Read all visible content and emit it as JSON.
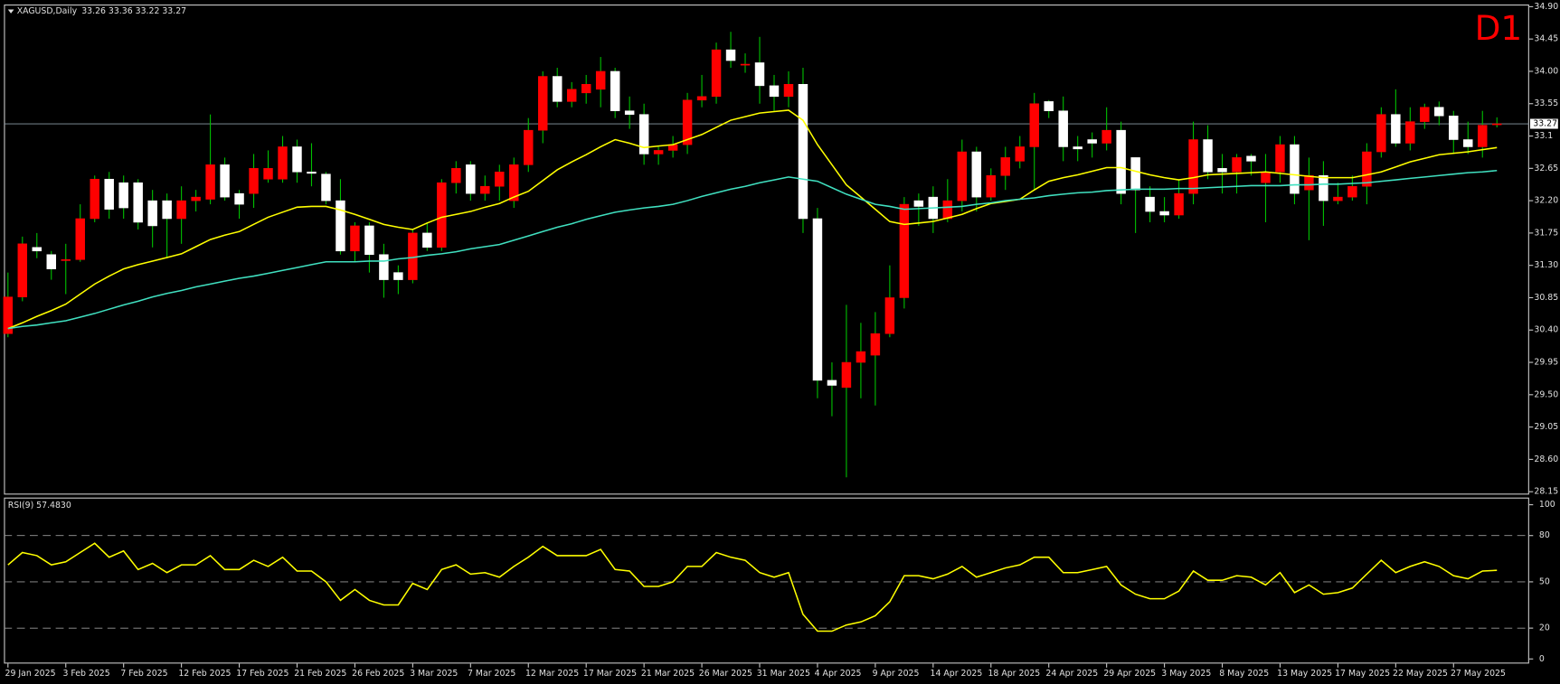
{
  "chart_data": [
    {
      "type": "candlestick",
      "title": "XAGUSD,Daily",
      "subtitle": "33.26 33.36 33.22 33.27",
      "annotation": "D1",
      "categories": [
        "29 Jan 2025",
        null,
        null,
        null,
        "3 Feb 2025",
        null,
        null,
        null,
        "7 Feb 2025",
        null,
        null,
        null,
        "12 Feb 2025",
        null,
        null,
        null,
        "17 Feb 2025",
        null,
        null,
        null,
        "21 Feb 2025",
        null,
        null,
        null,
        "26 Feb 2025",
        null,
        null,
        null,
        "3 Mar 2025",
        null,
        null,
        null,
        "7 Mar 2025",
        null,
        null,
        null,
        "12 Mar 2025",
        null,
        null,
        null,
        "17 Mar 2025",
        null,
        null,
        null,
        "21 Mar 2025",
        null,
        null,
        null,
        "26 Mar 2025",
        null,
        null,
        null,
        "31 Mar 2025",
        null,
        null,
        null,
        "4 Apr 2025",
        null,
        null,
        null,
        "9 Apr 2025",
        null,
        null,
        null,
        "14 Apr 2025",
        null,
        null,
        null,
        "18 Apr 2025",
        null,
        null,
        null,
        "24 Apr 2025",
        null,
        null,
        null,
        "29 Apr 2025",
        null,
        null,
        null,
        "3 May 2025",
        null,
        null,
        null,
        "8 May 2025",
        null,
        null,
        null,
        "13 May 2025",
        null,
        null,
        null,
        "17 May 2025",
        null,
        null,
        null,
        "22 May 2025",
        null,
        null,
        null,
        "27 May 2025",
        null,
        null,
        null
      ],
      "open": [
        30.35,
        30.86,
        31.55,
        31.45,
        31.38,
        31.38,
        31.95,
        32.5,
        32.45,
        32.45,
        32.2,
        32.2,
        31.95,
        32.2,
        32.22,
        32.7,
        32.3,
        32.3,
        32.5,
        32.5,
        32.95,
        32.6,
        32.57,
        32.2,
        31.5,
        31.85,
        31.45,
        31.2,
        31.1,
        31.75,
        31.55,
        32.45,
        32.7,
        32.3,
        32.4,
        32.2,
        32.7,
        33.18,
        33.93,
        33.58,
        33.7,
        33.75,
        34.0,
        33.45,
        33.4,
        32.85,
        32.9,
        32.98,
        33.6,
        33.65,
        34.3,
        34.1,
        34.12,
        33.8,
        33.65,
        33.82,
        31.95,
        29.7,
        29.6,
        29.95,
        30.05,
        30.35,
        30.85,
        32.2,
        32.25,
        31.95,
        32.2,
        32.88,
        32.25,
        32.55,
        32.75,
        32.95,
        33.58,
        33.45,
        32.95,
        33.05,
        33.0,
        33.18,
        32.8,
        32.25,
        32.05,
        32.0,
        32.3,
        33.05,
        32.65,
        32.6,
        32.82,
        32.45,
        32.6,
        32.98,
        32.35,
        32.55,
        32.2,
        32.25,
        32.4,
        32.88,
        33.4,
        33.0,
        33.3,
        33.5,
        33.38,
        33.05,
        32.95,
        33.26
      ],
      "high": [
        31.2,
        31.7,
        31.75,
        31.5,
        31.6,
        32.15,
        32.55,
        32.6,
        32.55,
        32.5,
        32.35,
        32.3,
        32.4,
        32.35,
        33.4,
        32.8,
        32.35,
        32.85,
        32.9,
        33.1,
        33.05,
        33.0,
        32.6,
        32.5,
        31.9,
        31.9,
        31.6,
        31.3,
        31.8,
        31.9,
        32.5,
        32.75,
        32.75,
        32.55,
        32.7,
        32.8,
        33.35,
        34.0,
        34.05,
        33.85,
        33.95,
        34.2,
        34.05,
        33.65,
        33.55,
        32.95,
        33.1,
        33.7,
        33.95,
        34.4,
        34.55,
        34.25,
        34.48,
        33.95,
        34.0,
        34.05,
        32.1,
        29.95,
        30.75,
        30.5,
        30.65,
        31.3,
        32.25,
        32.3,
        32.4,
        32.5,
        33.05,
        32.95,
        32.65,
        32.95,
        33.1,
        33.7,
        33.6,
        33.65,
        33.1,
        33.15,
        33.5,
        33.3,
        32.8,
        32.4,
        32.25,
        32.5,
        33.3,
        33.25,
        32.85,
        32.85,
        32.85,
        32.85,
        33.1,
        33.1,
        32.8,
        32.75,
        32.45,
        32.55,
        33.0,
        33.5,
        33.75,
        33.5,
        33.55,
        33.58,
        33.45,
        33.3,
        33.45,
        33.36
      ],
      "low": [
        30.3,
        30.8,
        31.4,
        31.1,
        30.9,
        31.35,
        31.9,
        31.95,
        31.95,
        31.8,
        31.55,
        31.4,
        31.6,
        32.05,
        32.15,
        32.2,
        31.95,
        32.1,
        32.45,
        32.45,
        32.45,
        32.4,
        32.15,
        31.45,
        31.35,
        31.2,
        30.85,
        30.9,
        31.05,
        31.5,
        31.5,
        32.3,
        32.2,
        32.2,
        32.2,
        32.1,
        32.6,
        33.0,
        33.5,
        33.5,
        33.55,
        33.5,
        33.35,
        33.2,
        32.7,
        32.7,
        32.8,
        32.85,
        33.5,
        33.55,
        34.05,
        33.98,
        33.55,
        33.45,
        33.5,
        31.75,
        29.45,
        29.2,
        28.35,
        29.45,
        29.35,
        30.3,
        30.7,
        31.85,
        31.75,
        31.9,
        32.05,
        32.05,
        32.2,
        32.35,
        32.65,
        32.35,
        33.35,
        32.75,
        32.75,
        32.8,
        32.9,
        32.15,
        31.75,
        31.9,
        31.9,
        31.95,
        32.15,
        32.5,
        32.3,
        32.3,
        32.55,
        31.9,
        32.45,
        32.15,
        31.65,
        31.85,
        32.15,
        32.2,
        32.15,
        32.8,
        32.95,
        32.9,
        33.2,
        33.25,
        32.85,
        32.85,
        32.8,
        33.22
      ],
      "close": [
        30.86,
        31.6,
        31.5,
        31.25,
        31.38,
        31.95,
        32.5,
        32.08,
        32.1,
        31.9,
        31.85,
        31.95,
        32.2,
        32.25,
        32.7,
        32.25,
        32.15,
        32.65,
        32.65,
        32.95,
        32.6,
        32.58,
        32.2,
        31.5,
        31.85,
        31.45,
        31.1,
        31.1,
        31.75,
        31.55,
        32.45,
        32.65,
        32.3,
        32.4,
        32.6,
        32.7,
        33.18,
        33.93,
        33.58,
        33.75,
        33.82,
        34.0,
        33.45,
        33.4,
        32.85,
        32.9,
        32.98,
        33.6,
        33.65,
        34.3,
        34.15,
        34.1,
        33.8,
        33.65,
        33.82,
        31.95,
        29.7,
        29.63,
        29.95,
        30.1,
        30.35,
        30.85,
        32.15,
        32.12,
        31.95,
        32.2,
        32.88,
        32.25,
        32.55,
        32.8,
        32.95,
        33.55,
        33.45,
        32.95,
        32.92,
        33.0,
        33.18,
        32.3,
        32.35,
        32.05,
        32.0,
        32.3,
        33.05,
        32.6,
        32.6,
        32.8,
        32.75,
        32.6,
        32.98,
        32.3,
        32.55,
        32.2,
        32.25,
        32.4,
        32.88,
        33.4,
        33.0,
        33.3,
        33.5,
        33.38,
        33.05,
        32.95,
        33.25,
        33.27
      ],
      "up_color": "#ff0000",
      "down_color": "#ffffff",
      "wick_color": "#00c000",
      "lines": [
        {
          "color": "#ffff00",
          "values": [
            30.42,
            30.5,
            30.59,
            30.67,
            30.76,
            30.9,
            31.04,
            31.15,
            31.25,
            31.31,
            31.36,
            31.41,
            31.46,
            31.56,
            31.66,
            31.72,
            31.77,
            31.87,
            31.97,
            32.04,
            32.11,
            32.12,
            32.12,
            32.07,
            32.01,
            31.94,
            31.87,
            31.83,
            31.8,
            31.89,
            31.97,
            32.01,
            32.05,
            32.11,
            32.16,
            32.25,
            32.33,
            32.48,
            32.63,
            32.74,
            32.84,
            32.95,
            33.05,
            33.0,
            32.94,
            32.96,
            32.98,
            33.05,
            33.12,
            33.22,
            33.32,
            33.37,
            33.42,
            33.44,
            33.46,
            33.32,
            32.98,
            32.7,
            32.42,
            32.25,
            32.08,
            31.91,
            31.87,
            31.89,
            31.91,
            31.96,
            32.01,
            32.09,
            32.16,
            32.19,
            32.22,
            32.35,
            32.47,
            32.52,
            32.56,
            32.61,
            32.66,
            32.66,
            32.61,
            32.56,
            32.52,
            32.49,
            32.52,
            32.56,
            32.57,
            32.58,
            32.59,
            32.6,
            32.58,
            32.56,
            32.54,
            32.52,
            32.52,
            32.52,
            32.56,
            32.6,
            32.67,
            32.74,
            32.79,
            32.84,
            32.86,
            32.88,
            32.91,
            32.94
          ]
        },
        {
          "color": "#40e0c0",
          "values": [
            30.42,
            30.45,
            30.47,
            30.5,
            30.53,
            30.58,
            30.63,
            30.69,
            30.75,
            30.8,
            30.86,
            30.91,
            30.95,
            31.0,
            31.04,
            31.08,
            31.12,
            31.15,
            31.19,
            31.23,
            31.27,
            31.31,
            31.35,
            31.35,
            31.35,
            31.36,
            31.36,
            31.39,
            31.41,
            31.44,
            31.46,
            31.49,
            31.53,
            31.56,
            31.59,
            31.65,
            31.71,
            31.77,
            31.83,
            31.88,
            31.94,
            31.99,
            32.04,
            32.07,
            32.1,
            32.12,
            32.15,
            32.2,
            32.26,
            32.31,
            32.36,
            32.4,
            32.45,
            32.49,
            32.53,
            32.5,
            32.47,
            32.38,
            32.29,
            32.22,
            32.15,
            32.12,
            32.08,
            32.09,
            32.1,
            32.11,
            32.12,
            32.15,
            32.17,
            32.2,
            32.22,
            32.24,
            32.27,
            32.29,
            32.31,
            32.32,
            32.34,
            32.35,
            32.36,
            32.36,
            32.36,
            32.37,
            32.37,
            32.38,
            32.39,
            32.4,
            32.41,
            32.41,
            32.41,
            32.42,
            32.42,
            32.43,
            32.43,
            32.44,
            32.45,
            32.47,
            32.49,
            32.51,
            32.53,
            32.55,
            32.57,
            32.59,
            32.6,
            32.62
          ]
        }
      ],
      "last_price": 33.27,
      "ylim": [
        28.11,
        34.93
      ],
      "yticks": [
        {
          "value": 34.9,
          "label": "34.90"
        },
        34.45,
        {
          "value": 34.0,
          "label": "34.00"
        },
        33.55,
        33.1,
        32.65,
        {
          "value": 32.2,
          "label": "32.20"
        },
        31.75,
        {
          "value": 31.3,
          "label": "31.30"
        },
        30.85,
        {
          "value": 30.4,
          "label": "30.40"
        },
        29.95,
        {
          "value": 29.5,
          "label": "29.50"
        },
        29.05,
        {
          "value": 28.6,
          "label": "28.60"
        },
        28.15
      ]
    },
    {
      "type": "line",
      "title": "RSI(9) 57.4830",
      "color": "#ffff00",
      "values": [
        61,
        69,
        67,
        61,
        63,
        69,
        75,
        66,
        70,
        58,
        62,
        56,
        61,
        61,
        67,
        58,
        58,
        64,
        60,
        66,
        57,
        57,
        50,
        38,
        45,
        38,
        35,
        35,
        49,
        45,
        58,
        61,
        55,
        56,
        53,
        60,
        66,
        73,
        67,
        67,
        67,
        71,
        58,
        57,
        47,
        47,
        50,
        60,
        60,
        69,
        66,
        64,
        56,
        53,
        56,
        29,
        18,
        18,
        22,
        24,
        28,
        37,
        54,
        54,
        52,
        55,
        60,
        53,
        56,
        59,
        61,
        66,
        66,
        56,
        56,
        58,
        60,
        48,
        42,
        39,
        39,
        44,
        57,
        51,
        51,
        54,
        53,
        48,
        56,
        43,
        48,
        42,
        43,
        46,
        55,
        64,
        56,
        60,
        63,
        60,
        54,
        52,
        57,
        57.483
      ],
      "ylim": [
        -3,
        104
      ],
      "yticks": [
        100,
        80,
        50,
        20,
        0
      ],
      "levels": [
        80,
        50,
        20
      ]
    }
  ]
}
